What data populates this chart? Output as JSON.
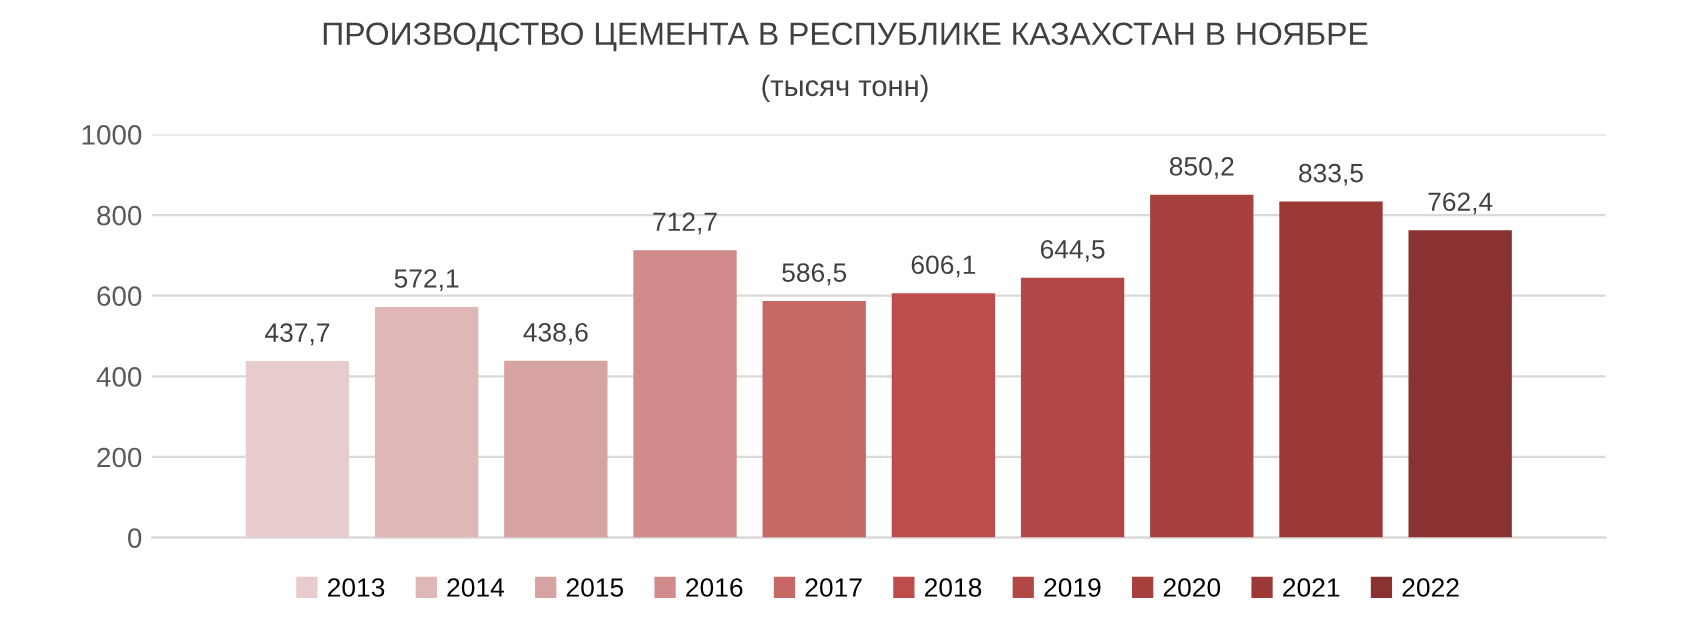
{
  "chart_data": {
    "type": "bar",
    "title": "ПРОИЗВОДСТВО ЦЕМЕНТА В РЕСПУБЛИКЕ КАЗАХСТАН В НОЯБРЕ",
    "subtitle": "(тысяч тонн)",
    "categories": [
      null
    ],
    "series": [
      {
        "name": "2013",
        "color": "#e8cbcb",
        "values": [
          437.7
        ],
        "value_labels": [
          "437,7"
        ]
      },
      {
        "name": "2014",
        "color": "#dfb7b6",
        "values": [
          572.1
        ],
        "value_labels": [
          "572,1"
        ]
      },
      {
        "name": "2015",
        "color": "#d6a3a2",
        "values": [
          438.6
        ],
        "value_labels": [
          "438,6"
        ]
      },
      {
        "name": "2016",
        "color": "#d08b8a",
        "values": [
          712.7
        ],
        "value_labels": [
          "712,7"
        ]
      },
      {
        "name": "2017",
        "color": "#c76866",
        "values": [
          586.5
        ],
        "value_labels": [
          "586,5"
        ]
      },
      {
        "name": "2018",
        "color": "#bd4c4a",
        "values": [
          606.1
        ],
        "value_labels": [
          "606,1"
        ]
      },
      {
        "name": "2019",
        "color": "#b24845",
        "values": [
          644.5
        ],
        "value_labels": [
          "644,5"
        ]
      },
      {
        "name": "2020",
        "color": "#a8403e",
        "values": [
          850.2
        ],
        "value_labels": [
          "850,2"
        ]
      },
      {
        "name": "2021",
        "color": "#9c3836",
        "values": [
          833.5
        ],
        "value_labels": [
          "833,5"
        ]
      },
      {
        "name": "2022",
        "color": "#8a3232",
        "values": [
          762.4
        ],
        "value_labels": [
          "762,4"
        ]
      }
    ],
    "ylim": [
      0,
      1000
    ],
    "yticks": [
      0,
      200,
      400,
      600,
      800,
      1000
    ],
    "grid": "y",
    "legend": "bottom"
  }
}
